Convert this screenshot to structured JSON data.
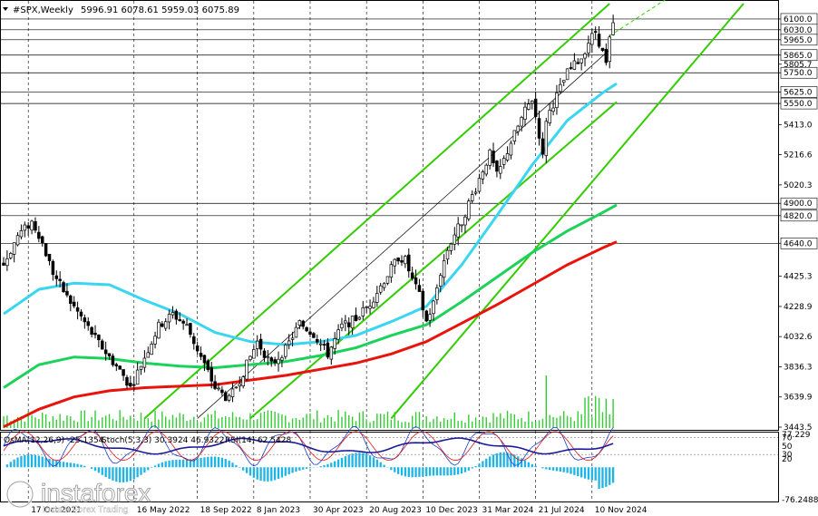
{
  "header": {
    "symbol": "#SPX,Weekly",
    "ohlc": "5996.91 6078.61 5959.03 6075.89"
  },
  "indicator_header": {
    "macd": "OsMA(12,26,9) -25.1354",
    "stoch": "Stoch(5,3,3) 30.3924 46.9322",
    "rsi": "RSI(14) 62.5428"
  },
  "watermark": {
    "brand": "instaforex",
    "tagline": "Instant Forex Trading"
  },
  "colors": {
    "candle": "#000000",
    "ma_red": "#e8140c",
    "ma_green": "#1cd25a",
    "ma_cyan": "#3ad6f0",
    "channel": "#33cc00",
    "histogram": "#1eb4e6",
    "stoch_main": "#1e3cc8",
    "stoch_signal": "#e01818",
    "rsi": "#1a1a9a"
  },
  "chart_data": {
    "type": "candlestick",
    "timeframe": "Weekly",
    "x_labels": [
      "17 Oct 2021",
      "16 May 2022",
      "18 Sep 2022",
      "8 Jan 2023",
      "30 Apr 2023",
      "20 Aug 2023",
      "10 Dec 2023",
      "31 Mar 2024",
      "21 Jul 2024",
      "10 Nov 2024"
    ],
    "y_ticks": [
      6100.0,
      6030.0,
      5965.0,
      5865.0,
      5805.7,
      5750.0,
      5625.0,
      5550.0,
      5413.0,
      5216.6,
      5020.3,
      4900.0,
      4820.0,
      4640.0,
      4425.3,
      4228.9,
      4032.6,
      3836.3,
      3639.9,
      3443.5
    ],
    "highlighted_levels": [
      6100.0,
      6030.0,
      5965.0,
      5865.0,
      5750.0,
      5625.0,
      5550.0,
      4900.0,
      4820.0,
      4640.0
    ],
    "ylim": [
      3443.5,
      6200.0
    ],
    "last": {
      "open": 5996.91,
      "high": 6078.61,
      "low": 5959.03,
      "close": 6075.89
    },
    "close_path": [
      [
        0,
        4500
      ],
      [
        4,
        4690
      ],
      [
        8,
        4780
      ],
      [
        10,
        4700
      ],
      [
        14,
        4450
      ],
      [
        18,
        4290
      ],
      [
        22,
        4160
      ],
      [
        26,
        4020
      ],
      [
        30,
        3900
      ],
      [
        34,
        3780
      ],
      [
        36,
        3700
      ],
      [
        40,
        3900
      ],
      [
        44,
        4100
      ],
      [
        48,
        4180
      ],
      [
        52,
        4100
      ],
      [
        56,
        3900
      ],
      [
        60,
        3700
      ],
      [
        64,
        3620
      ],
      [
        68,
        3800
      ],
      [
        72,
        4000
      ],
      [
        76,
        3850
      ],
      [
        80,
        3950
      ],
      [
        84,
        4120
      ],
      [
        88,
        4050
      ],
      [
        92,
        3920
      ],
      [
        96,
        4100
      ],
      [
        100,
        4150
      ],
      [
        104,
        4250
      ],
      [
        108,
        4400
      ],
      [
        112,
        4550
      ],
      [
        114,
        4530
      ],
      [
        116,
        4400
      ],
      [
        118,
        4300
      ],
      [
        120,
        4130
      ],
      [
        122,
        4250
      ],
      [
        124,
        4450
      ],
      [
        126,
        4600
      ],
      [
        128,
        4700
      ],
      [
        130,
        4780
      ],
      [
        132,
        4900
      ],
      [
        134,
        5000
      ],
      [
        136,
        5120
      ],
      [
        138,
        5220
      ],
      [
        140,
        5080
      ],
      [
        142,
        5180
      ],
      [
        144,
        5300
      ],
      [
        146,
        5400
      ],
      [
        148,
        5500
      ],
      [
        150,
        5580
      ],
      [
        152,
        5350
      ],
      [
        153,
        5200
      ],
      [
        154,
        5450
      ],
      [
        156,
        5550
      ],
      [
        158,
        5650
      ],
      [
        160,
        5750
      ],
      [
        162,
        5800
      ],
      [
        164,
        5850
      ],
      [
        166,
        5950
      ],
      [
        168,
        6020
      ],
      [
        170,
        5880
      ],
      [
        171,
        5800
      ],
      [
        172,
        5960
      ],
      [
        173,
        6075.89
      ]
    ],
    "moving_averages": [
      {
        "color": "cyan",
        "points": [
          [
            0,
            4180
          ],
          [
            10,
            4340
          ],
          [
            20,
            4380
          ],
          [
            30,
            4370
          ],
          [
            40,
            4270
          ],
          [
            50,
            4180
          ],
          [
            60,
            4060
          ],
          [
            70,
            4000
          ],
          [
            80,
            3980
          ],
          [
            90,
            4000
          ],
          [
            100,
            4040
          ],
          [
            110,
            4130
          ],
          [
            120,
            4230
          ],
          [
            130,
            4500
          ],
          [
            140,
            4820
          ],
          [
            150,
            5150
          ],
          [
            160,
            5440
          ],
          [
            170,
            5620
          ],
          [
            174,
            5680
          ]
        ]
      },
      {
        "color": "green",
        "points": [
          [
            0,
            3700
          ],
          [
            10,
            3850
          ],
          [
            20,
            3900
          ],
          [
            30,
            3890
          ],
          [
            40,
            3860
          ],
          [
            50,
            3840
          ],
          [
            60,
            3830
          ],
          [
            70,
            3850
          ],
          [
            80,
            3870
          ],
          [
            90,
            3910
          ],
          [
            100,
            3960
          ],
          [
            110,
            4040
          ],
          [
            120,
            4110
          ],
          [
            130,
            4260
          ],
          [
            140,
            4420
          ],
          [
            150,
            4580
          ],
          [
            160,
            4720
          ],
          [
            170,
            4840
          ],
          [
            174,
            4890
          ]
        ]
      },
      {
        "color": "red",
        "points": [
          [
            0,
            3445
          ],
          [
            10,
            3560
          ],
          [
            20,
            3640
          ],
          [
            30,
            3680
          ],
          [
            40,
            3700
          ],
          [
            50,
            3710
          ],
          [
            60,
            3720
          ],
          [
            70,
            3750
          ],
          [
            80,
            3780
          ],
          [
            90,
            3820
          ],
          [
            100,
            3860
          ],
          [
            110,
            3920
          ],
          [
            120,
            4000
          ],
          [
            130,
            4120
          ],
          [
            140,
            4240
          ],
          [
            150,
            4370
          ],
          [
            160,
            4500
          ],
          [
            170,
            4610
          ],
          [
            174,
            4650
          ]
        ]
      }
    ],
    "channel_lines": [
      {
        "points": [
          [
            40,
            3500
          ],
          [
            172,
            6200
          ]
        ]
      },
      {
        "points": [
          [
            70,
            3500
          ],
          [
            174,
            5560
          ]
        ]
      },
      {
        "points": [
          [
            110,
            3500
          ],
          [
            210,
            6200
          ]
        ]
      },
      {
        "points": [
          [
            55,
            3500
          ],
          [
            172,
            5900
          ]
        ]
      }
    ],
    "indicator": {
      "ylim": [
        -76.2488,
        77.229
      ],
      "y_ticks": [
        77.229,
        70,
        50,
        30,
        20,
        -76.2488
      ],
      "osma_last": -25.1354,
      "stoch_k": 30.3924,
      "stoch_d": 46.9322,
      "rsi": 62.5428
    }
  }
}
